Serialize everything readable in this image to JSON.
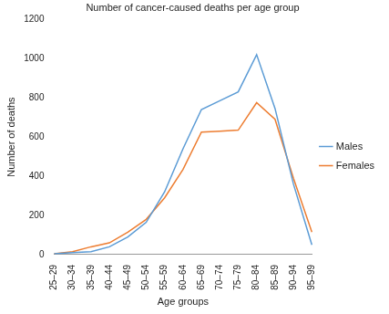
{
  "chart_data": {
    "type": "line",
    "title": "Number of cancer-caused deaths per age group",
    "x_label": "Age groups",
    "y_label": "Number of deaths",
    "categories": [
      "25–29",
      "30–34",
      "35–39",
      "40–44",
      "45–49",
      "50–54",
      "55–59",
      "60–64",
      "65–69",
      "70–74",
      "75–79",
      "80–84",
      "85–89",
      "90–94",
      "95–99"
    ],
    "series": [
      {
        "name": "Males",
        "color": "#5b9bd5",
        "values": [
          5,
          10,
          15,
          40,
          90,
          165,
          320,
          540,
          740,
          785,
          830,
          1020,
          745,
          360,
          50
        ]
      },
      {
        "name": "Females",
        "color": "#ed7d31",
        "values": [
          5,
          15,
          40,
          60,
          115,
          180,
          290,
          435,
          625,
          630,
          635,
          775,
          690,
          390,
          115
        ]
      }
    ],
    "ylim": [
      0,
      1200
    ],
    "yticks": [
      0,
      200,
      400,
      600,
      800,
      1000,
      1200
    ],
    "grid": false,
    "legend": "right"
  }
}
